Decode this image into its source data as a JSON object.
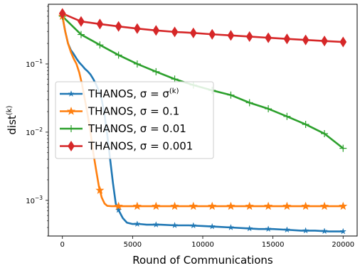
{
  "chart_data": {
    "type": "line",
    "xlabel": "Round of Communications",
    "ylabel": "dist",
    "ylabel_sup": "(k)",
    "yscale": "log",
    "xlim": [
      -1000,
      21000
    ],
    "ylim": [
      0.0003,
      0.75
    ],
    "xticks": [
      0,
      5000,
      10000,
      15000,
      20000
    ],
    "xtick_labels": [
      "0",
      "5000",
      "10000",
      "15000",
      "20000"
    ],
    "yticks": [
      0.001,
      0.01,
      0.1
    ],
    "ytick_labels": [
      {
        "base": "10",
        "exp": "−3"
      },
      {
        "base": "10",
        "exp": "−2"
      },
      {
        "base": "10",
        "exp": "−1"
      }
    ],
    "grid": false,
    "legend_position": "center-left",
    "series": [
      {
        "name_prefix": "THANOS, σ = σ",
        "name_sup": "(k)",
        "color": "#1f77b4",
        "marker": "star-thin",
        "x": [
          0,
          200,
          400,
          600,
          800,
          1000,
          1200,
          1400,
          1600,
          1800,
          2000,
          2200,
          2400,
          2600,
          2800,
          3000,
          3200,
          3400,
          3600,
          3800,
          4000,
          4300,
          4600,
          5000,
          5500,
          6000,
          6600,
          7000,
          8000,
          9000,
          10000,
          11000,
          12000,
          13000,
          14000,
          15000,
          16000,
          17000,
          18000,
          19000,
          20000
        ],
        "y": [
          0.5,
          0.3,
          0.2,
          0.16,
          0.14,
          0.12,
          0.105,
          0.095,
          0.085,
          0.078,
          0.07,
          0.06,
          0.05,
          0.04,
          0.03,
          0.018,
          0.009,
          0.004,
          0.0018,
          0.0009,
          0.00072,
          0.00055,
          0.00047,
          0.00045,
          0.00045,
          0.00044,
          0.00044,
          0.00044,
          0.00043,
          0.00043,
          0.00042,
          0.00041,
          0.0004,
          0.00039,
          0.00038,
          0.00038,
          0.00037,
          0.00036,
          0.00036,
          0.00035,
          0.00035
        ],
        "marker_x": [
          0,
          4000,
          5330,
          6670,
          8000,
          9330,
          10670,
          12000,
          13330,
          14670,
          16000,
          17330,
          18670,
          20000
        ]
      },
      {
        "name_prefix": "THANOS, σ = 0.1",
        "name_sup": "",
        "color": "#ff7f0e",
        "marker": "star",
        "x": [
          0,
          200,
          400,
          600,
          800,
          1000,
          1200,
          1400,
          1600,
          1800,
          2000,
          2200,
          2400,
          2600,
          2800,
          3000,
          3200,
          3500,
          4000,
          5000,
          6000,
          8000,
          10000,
          12000,
          14000,
          16000,
          18000,
          20000
        ],
        "y": [
          0.5,
          0.3,
          0.2,
          0.15,
          0.12,
          0.1,
          0.075,
          0.05,
          0.03,
          0.018,
          0.01,
          0.005,
          0.0028,
          0.0016,
          0.0011,
          0.0009,
          0.00083,
          0.00082,
          0.00082,
          0.00082,
          0.00082,
          0.00082,
          0.00082,
          0.00082,
          0.00082,
          0.00082,
          0.00082,
          0.00082
        ],
        "marker_x": [
          0,
          2670,
          4000,
          5330,
          6670,
          8000,
          9330,
          10670,
          12000,
          13330,
          14670,
          16000,
          17330,
          18670,
          20000
        ]
      },
      {
        "name_prefix": "THANOS, σ = 0.01",
        "name_sup": "",
        "color": "#2ca02c",
        "marker": "plus",
        "x": [
          0,
          1330,
          2670,
          4000,
          5330,
          6670,
          8000,
          9330,
          10670,
          12000,
          13330,
          14670,
          16000,
          17330,
          18670,
          20000
        ],
        "y": [
          0.5,
          0.27,
          0.19,
          0.135,
          0.1,
          0.077,
          0.06,
          0.049,
          0.041,
          0.035,
          0.027,
          0.022,
          0.017,
          0.013,
          0.0095,
          0.0058
        ],
        "marker_x": [
          0,
          1330,
          2670,
          4000,
          5330,
          6670,
          8000,
          9330,
          10670,
          12000,
          13330,
          14670,
          16000,
          17330,
          18670,
          20000
        ]
      },
      {
        "name_prefix": "THANOS, σ = 0.001",
        "name_sup": "",
        "color": "#d62728",
        "marker": "thin-diamond",
        "x": [
          0,
          1330,
          2670,
          4000,
          5330,
          6670,
          8000,
          9330,
          10670,
          12000,
          13330,
          14670,
          16000,
          17330,
          18670,
          20000
        ],
        "y": [
          0.55,
          0.42,
          0.385,
          0.355,
          0.33,
          0.31,
          0.295,
          0.285,
          0.272,
          0.262,
          0.252,
          0.242,
          0.233,
          0.225,
          0.217,
          0.21
        ],
        "marker_x": [
          0,
          1330,
          2670,
          4000,
          5330,
          6670,
          8000,
          9330,
          10670,
          12000,
          13330,
          14670,
          16000,
          17330,
          18670,
          20000
        ]
      }
    ]
  }
}
